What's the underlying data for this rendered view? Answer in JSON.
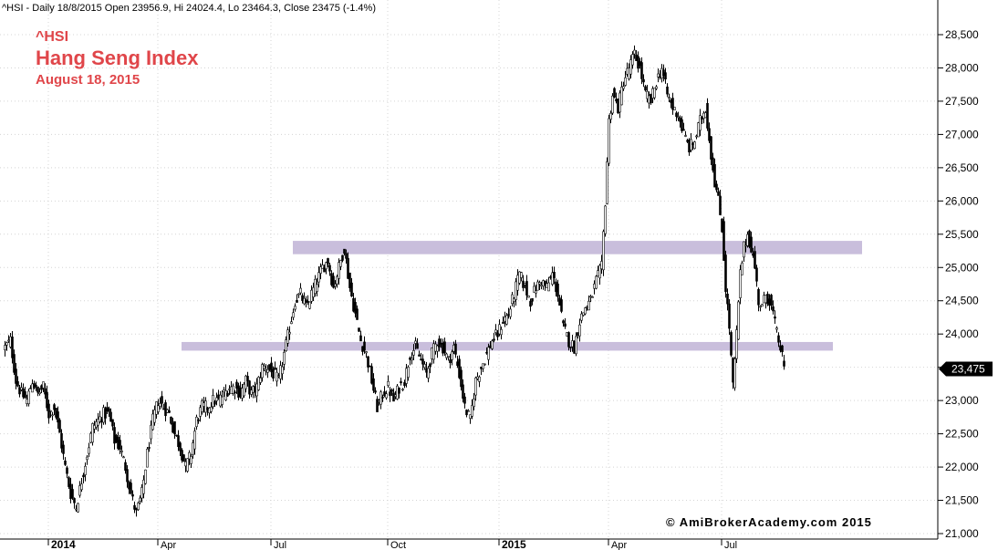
{
  "header": "^HSI - Daily 18/8/2015 Open 23956.9, Hi 24024.4, Lo 23464.3, Close 23475 (-1.4%)",
  "annotations": {
    "symbol": "^HSI",
    "title": "Hang Seng Index",
    "date": "August 18, 2015"
  },
  "watermark": "© AmiBrokerAcademy.com 2015",
  "chart_data": {
    "type": "candlestick",
    "ylim": [
      21000,
      28800
    ],
    "y_ticks": [
      "28,500",
      "28,000",
      "27,500",
      "27,000",
      "26,500",
      "26,000",
      "25,500",
      "25,000",
      "24,500",
      "24,000",
      "23,500",
      "23,000",
      "22,500",
      "22,000",
      "21,500",
      "21,000"
    ],
    "x_ticks": [
      {
        "label": "2014",
        "day": 24,
        "bold": true
      },
      {
        "label": "Apr",
        "day": 84,
        "bold": false
      },
      {
        "label": "Jul",
        "day": 146,
        "bold": false
      },
      {
        "label": "Oct",
        "day": 210,
        "bold": false
      },
      {
        "label": "2015",
        "day": 271,
        "bold": true
      },
      {
        "label": "Apr",
        "day": 331,
        "bold": false
      },
      {
        "label": "Jul",
        "day": 393,
        "bold": false
      }
    ],
    "last_value": "23,475",
    "last_close": 23475,
    "resistance_zones": [
      {
        "y1": 25200,
        "y2": 25400,
        "start_day": 158,
        "end_day": 470
      },
      {
        "y1": 23750,
        "y2": 23880,
        "start_day": 97,
        "end_day": 454
      }
    ],
    "close_path": [
      [
        0,
        23800
      ],
      [
        3,
        23900
      ],
      [
        6,
        23300
      ],
      [
        9,
        23100
      ],
      [
        12,
        23000
      ],
      [
        15,
        23300
      ],
      [
        18,
        23100
      ],
      [
        21,
        23200
      ],
      [
        24,
        22800
      ],
      [
        27,
        22900
      ],
      [
        30,
        22500
      ],
      [
        33,
        22000
      ],
      [
        36,
        21600
      ],
      [
        39,
        21400
      ],
      [
        42,
        21800
      ],
      [
        45,
        22200
      ],
      [
        48,
        22600
      ],
      [
        51,
        22700
      ],
      [
        54,
        22800
      ],
      [
        57,
        22800
      ],
      [
        60,
        22400
      ],
      [
        63,
        22300
      ],
      [
        66,
        22000
      ],
      [
        69,
        21600
      ],
      [
        72,
        21300
      ],
      [
        75,
        21600
      ],
      [
        78,
        22200
      ],
      [
        81,
        22700
      ],
      [
        84,
        23000
      ],
      [
        87,
        22900
      ],
      [
        90,
        22800
      ],
      [
        93,
        22500
      ],
      [
        96,
        22300
      ],
      [
        99,
        22000
      ],
      [
        102,
        22200
      ],
      [
        105,
        22700
      ],
      [
        108,
        22900
      ],
      [
        111,
        22900
      ],
      [
        114,
        23000
      ],
      [
        117,
        23000
      ],
      [
        120,
        23100
      ],
      [
        123,
        23200
      ],
      [
        126,
        23200
      ],
      [
        129,
        23100
      ],
      [
        132,
        23300
      ],
      [
        135,
        23100
      ],
      [
        138,
        23200
      ],
      [
        141,
        23500
      ],
      [
        144,
        23500
      ],
      [
        147,
        23400
      ],
      [
        150,
        23300
      ],
      [
        153,
        23700
      ],
      [
        156,
        24100
      ],
      [
        159,
        24500
      ],
      [
        162,
        24600
      ],
      [
        165,
        24400
      ],
      [
        168,
        24600
      ],
      [
        171,
        24800
      ],
      [
        174,
        25000
      ],
      [
        177,
        25100
      ],
      [
        180,
        24700
      ],
      [
        183,
        25000
      ],
      [
        186,
        25300
      ],
      [
        189,
        24700
      ],
      [
        192,
        24300
      ],
      [
        195,
        23900
      ],
      [
        198,
        23700
      ],
      [
        201,
        23300
      ],
      [
        204,
        22900
      ],
      [
        207,
        23100
      ],
      [
        210,
        23200
      ],
      [
        213,
        23000
      ],
      [
        216,
        23200
      ],
      [
        219,
        23300
      ],
      [
        222,
        23700
      ],
      [
        225,
        23800
      ],
      [
        228,
        23600
      ],
      [
        231,
        23400
      ],
      [
        234,
        23700
      ],
      [
        237,
        23900
      ],
      [
        240,
        23800
      ],
      [
        243,
        23600
      ],
      [
        246,
        23800
      ],
      [
        249,
        23400
      ],
      [
        252,
        22900
      ],
      [
        255,
        22700
      ],
      [
        258,
        23300
      ],
      [
        261,
        23500
      ],
      [
        264,
        23700
      ],
      [
        267,
        23900
      ],
      [
        270,
        24000
      ],
      [
        273,
        24200
      ],
      [
        276,
        24300
      ],
      [
        279,
        24600
      ],
      [
        282,
        24900
      ],
      [
        285,
        24700
      ],
      [
        288,
        24500
      ],
      [
        291,
        24700
      ],
      [
        294,
        24800
      ],
      [
        297,
        24700
      ],
      [
        300,
        24900
      ],
      [
        303,
        24600
      ],
      [
        306,
        24100
      ],
      [
        309,
        23900
      ],
      [
        312,
        23800
      ],
      [
        315,
        24200
      ],
      [
        318,
        24400
      ],
      [
        321,
        24500
      ],
      [
        324,
        24800
      ],
      [
        327,
        25000
      ],
      [
        329,
        26000
      ],
      [
        331,
        27200
      ],
      [
        333,
        27600
      ],
      [
        336,
        27400
      ],
      [
        339,
        27800
      ],
      [
        342,
        28000
      ],
      [
        345,
        28200
      ],
      [
        348,
        28000
      ],
      [
        351,
        27600
      ],
      [
        354,
        27500
      ],
      [
        357,
        27800
      ],
      [
        360,
        28000
      ],
      [
        363,
        27600
      ],
      [
        366,
        27400
      ],
      [
        369,
        27300
      ],
      [
        372,
        27000
      ],
      [
        375,
        26800
      ],
      [
        378,
        26900
      ],
      [
        381,
        27200
      ],
      [
        384,
        27400
      ],
      [
        387,
        26700
      ],
      [
        389,
        26300
      ],
      [
        391,
        26000
      ],
      [
        393,
        25600
      ],
      [
        395,
        24700
      ],
      [
        397,
        24100
      ],
      [
        399,
        23200
      ],
      [
        401,
        24000
      ],
      [
        403,
        24900
      ],
      [
        405,
        25300
      ],
      [
        407,
        25500
      ],
      [
        409,
        25300
      ],
      [
        411,
        25000
      ],
      [
        413,
        24500
      ],
      [
        415,
        24400
      ],
      [
        417,
        24600
      ],
      [
        419,
        24500
      ],
      [
        421,
        24300
      ],
      [
        423,
        24000
      ],
      [
        425,
        23800
      ],
      [
        427,
        23475
      ]
    ]
  }
}
